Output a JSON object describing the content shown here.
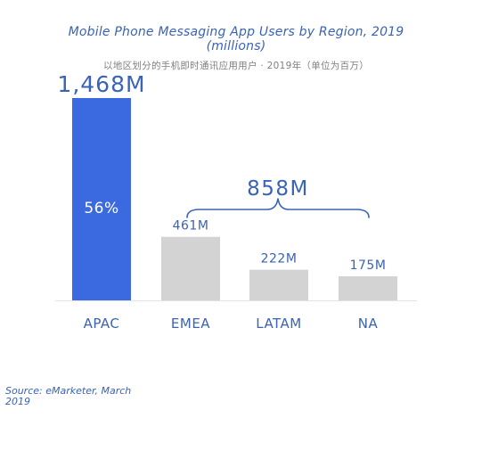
{
  "title_line1": "Mobile Phone Messaging App Users by Region, 2019",
  "title_line2": "(millions)",
  "subtitle": "以地区划分的手机即时通讯应用用户 · 2019年（单位为百万）",
  "source": "Source: eMarketer, March 2019",
  "colors": {
    "highlight_bar": "#3b6ae0",
    "other_bar": "#d3d3d3",
    "text_blue": "#3a63b6",
    "axis": "#e3e3e3"
  },
  "chart_data": {
    "type": "bar",
    "categories": [
      "APAC",
      "EMEA",
      "LATAM",
      "NA"
    ],
    "values": [
      1468,
      461,
      222,
      175
    ],
    "value_labels": [
      "1,468M",
      "461M",
      "222M",
      "175M"
    ],
    "highlight_index": 0,
    "inner_label": "56%",
    "bracket": {
      "label": "858M",
      "categories": [
        "EMEA",
        "LATAM",
        "NA"
      ]
    },
    "ylim": [
      0,
      1468
    ]
  }
}
